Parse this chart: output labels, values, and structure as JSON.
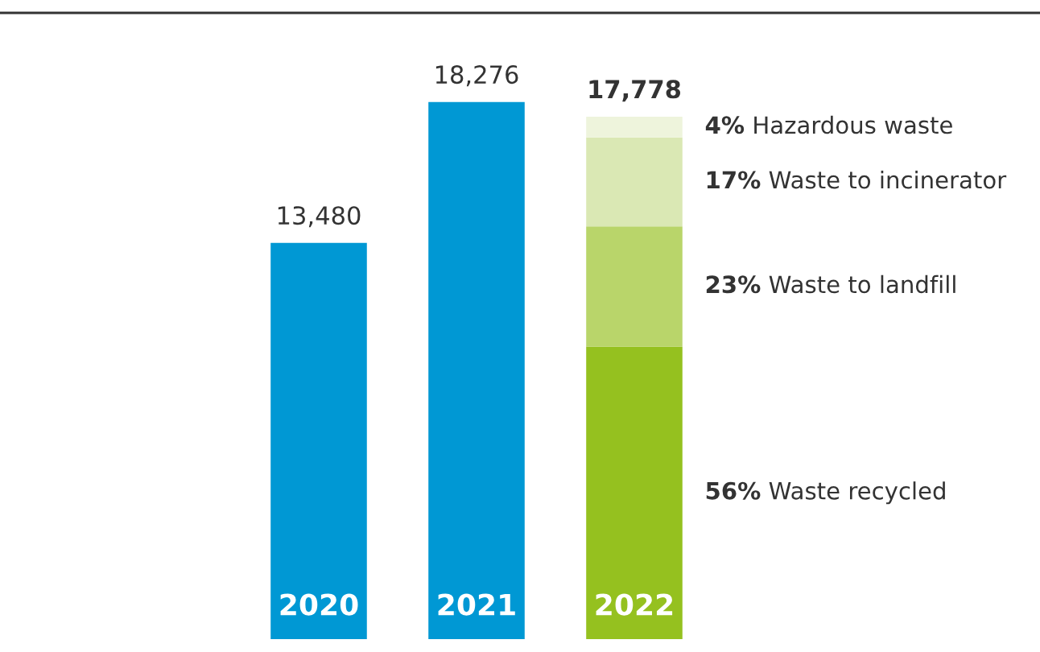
{
  "chart_data": {
    "type": "bar",
    "stacked": true,
    "categories": [
      "2020",
      "2021",
      "2022"
    ],
    "series": [
      {
        "color": "#0098d4",
        "values": [
          13480,
          18276,
          null
        ],
        "value_labels": [
          "13,480",
          "18,276",
          null
        ]
      },
      {
        "name": "56% Waste recycled",
        "color": "#95c11f",
        "values": [
          null,
          null,
          9956
        ]
      },
      {
        "name": "23% Waste to landfill",
        "color": "#b9d56a",
        "values": [
          null,
          null,
          4089
        ]
      },
      {
        "name": "17% Waste to incinerator",
        "color": "#dae8b4",
        "values": [
          null,
          null,
          3022
        ]
      },
      {
        "name": "4% Hazardous waste",
        "color": "#eef4dc",
        "values": [
          null,
          null,
          711
        ]
      }
    ],
    "totals": [
      null,
      null,
      "17,778"
    ],
    "legend": false
  }
}
